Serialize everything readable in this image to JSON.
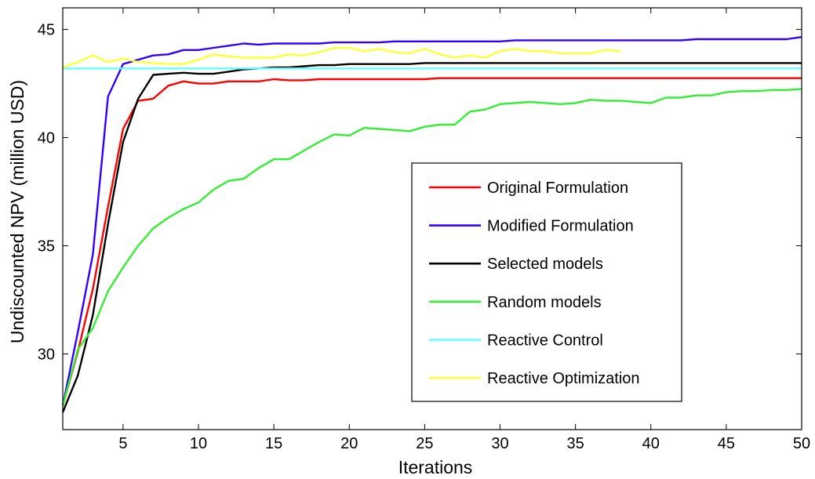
{
  "chart_data": {
    "type": "line",
    "xlabel": "Iterations",
    "ylabel": "Undiscounted NPV (million USD)",
    "xlim": [
      1,
      50
    ],
    "ylim": [
      26.5,
      46
    ],
    "xticks": [
      5,
      10,
      15,
      20,
      25,
      30,
      35,
      40,
      45,
      50
    ],
    "yticks": [
      30,
      35,
      40,
      45
    ],
    "grid": false,
    "legend_position": "center-right",
    "series": [
      {
        "name": "Original Formulation",
        "color": "#ff0000",
        "x": [
          1,
          2,
          3,
          4,
          5,
          6,
          7,
          8,
          9,
          10,
          11,
          12,
          13,
          14,
          15,
          16,
          17,
          18,
          19,
          20,
          21,
          22,
          23,
          24,
          25,
          26,
          27,
          28,
          29,
          30,
          31,
          32,
          33,
          34,
          35,
          36,
          37,
          38,
          39,
          40,
          41,
          42,
          43,
          44,
          45,
          46,
          47,
          48,
          49,
          50
        ],
        "y": [
          27.6,
          30.1,
          33.0,
          36.8,
          40.4,
          41.7,
          41.8,
          42.4,
          42.6,
          42.5,
          42.5,
          42.6,
          42.6,
          42.6,
          42.7,
          42.65,
          42.65,
          42.7,
          42.7,
          42.7,
          42.7,
          42.7,
          42.7,
          42.7,
          42.7,
          42.75,
          42.75,
          42.75,
          42.75,
          42.75,
          42.75,
          42.75,
          42.75,
          42.75,
          42.75,
          42.75,
          42.75,
          42.75,
          42.75,
          42.75,
          42.75,
          42.75,
          42.75,
          42.75,
          42.75,
          42.75,
          42.75,
          42.75,
          42.75,
          42.75
        ]
      },
      {
        "name": "Modified Formulation",
        "color": "#3300ff",
        "x": [
          1,
          2,
          3,
          4,
          5,
          6,
          7,
          8,
          9,
          10,
          11,
          12,
          13,
          14,
          15,
          16,
          17,
          18,
          19,
          20,
          21,
          22,
          23,
          24,
          25,
          26,
          27,
          28,
          29,
          30,
          31,
          32,
          33,
          34,
          35,
          36,
          37,
          38,
          39,
          40,
          41,
          42,
          43,
          44,
          45,
          46,
          47,
          48,
          49,
          50
        ],
        "y": [
          27.6,
          31.0,
          34.6,
          41.9,
          43.4,
          43.6,
          43.8,
          43.85,
          44.05,
          44.05,
          44.15,
          44.25,
          44.35,
          44.3,
          44.35,
          44.35,
          44.35,
          44.35,
          44.4,
          44.4,
          44.4,
          44.4,
          44.45,
          44.45,
          44.45,
          44.45,
          44.45,
          44.45,
          44.45,
          44.45,
          44.5,
          44.5,
          44.5,
          44.5,
          44.5,
          44.5,
          44.5,
          44.5,
          44.5,
          44.5,
          44.5,
          44.5,
          44.55,
          44.55,
          44.55,
          44.55,
          44.55,
          44.55,
          44.55,
          44.65
        ]
      },
      {
        "name": "Selected models",
        "color": "#000000",
        "x": [
          1,
          2,
          3,
          4,
          5,
          6,
          7,
          8,
          9,
          10,
          11,
          12,
          13,
          14,
          15,
          16,
          17,
          18,
          19,
          20,
          21,
          22,
          23,
          24,
          25,
          26,
          27,
          28,
          29,
          30,
          31,
          32,
          33,
          34,
          35,
          36,
          37,
          38,
          39,
          40,
          41,
          42,
          43,
          44,
          45,
          46,
          47,
          48,
          49,
          50
        ],
        "y": [
          27.3,
          29.0,
          31.8,
          36.0,
          39.8,
          41.8,
          42.9,
          42.95,
          43.0,
          42.95,
          42.95,
          43.05,
          43.15,
          43.2,
          43.25,
          43.25,
          43.3,
          43.35,
          43.35,
          43.4,
          43.4,
          43.4,
          43.4,
          43.4,
          43.45,
          43.45,
          43.45,
          43.45,
          43.45,
          43.45,
          43.45,
          43.45,
          43.45,
          43.45,
          43.45,
          43.45,
          43.45,
          43.45,
          43.45,
          43.45,
          43.45,
          43.45,
          43.45,
          43.45,
          43.45,
          43.45,
          43.45,
          43.45,
          43.45,
          43.45
        ]
      },
      {
        "name": "Random models",
        "color": "#33ee33",
        "x": [
          1,
          2,
          3,
          4,
          5,
          6,
          7,
          8,
          9,
          10,
          11,
          12,
          13,
          14,
          15,
          16,
          17,
          18,
          19,
          20,
          21,
          22,
          23,
          24,
          25,
          26,
          27,
          28,
          29,
          30,
          31,
          32,
          33,
          34,
          35,
          36,
          37,
          38,
          39,
          40,
          41,
          42,
          43,
          44,
          45,
          46,
          47,
          48,
          49,
          50
        ],
        "y": [
          27.6,
          30.2,
          31.2,
          32.9,
          34.0,
          35.0,
          35.8,
          36.3,
          36.7,
          37.0,
          37.6,
          38.0,
          38.1,
          38.6,
          39.0,
          39.0,
          39.4,
          39.8,
          40.15,
          40.1,
          40.45,
          40.4,
          40.35,
          40.3,
          40.5,
          40.6,
          40.6,
          41.2,
          41.3,
          41.55,
          41.6,
          41.65,
          41.6,
          41.55,
          41.6,
          41.75,
          41.7,
          41.7,
          41.65,
          41.6,
          41.85,
          41.85,
          41.95,
          41.95,
          42.1,
          42.15,
          42.15,
          42.2,
          42.2,
          42.25
        ]
      },
      {
        "name": "Reactive Control",
        "color": "#66ffff",
        "x": [
          1,
          50
        ],
        "y": [
          43.2,
          43.2
        ]
      },
      {
        "name": "Reactive Optimization",
        "color": "#ffff33",
        "x": [
          1,
          2,
          3,
          4,
          5,
          6,
          7,
          8,
          9,
          10,
          11,
          12,
          13,
          14,
          15,
          16,
          17,
          18,
          19,
          20,
          21,
          22,
          23,
          24,
          25,
          26,
          27,
          28,
          29,
          30,
          31,
          32,
          33,
          34,
          35,
          36,
          37,
          38
        ],
        "y": [
          43.25,
          43.5,
          43.8,
          43.5,
          43.65,
          43.5,
          43.45,
          43.4,
          43.4,
          43.6,
          43.85,
          43.75,
          43.7,
          43.7,
          43.7,
          43.85,
          43.8,
          43.95,
          44.15,
          44.15,
          44.0,
          44.1,
          43.95,
          43.9,
          44.1,
          43.85,
          43.7,
          43.8,
          43.7,
          44.0,
          44.1,
          44.0,
          44.0,
          43.9,
          43.9,
          43.9,
          44.05,
          44.0
        ]
      }
    ]
  }
}
